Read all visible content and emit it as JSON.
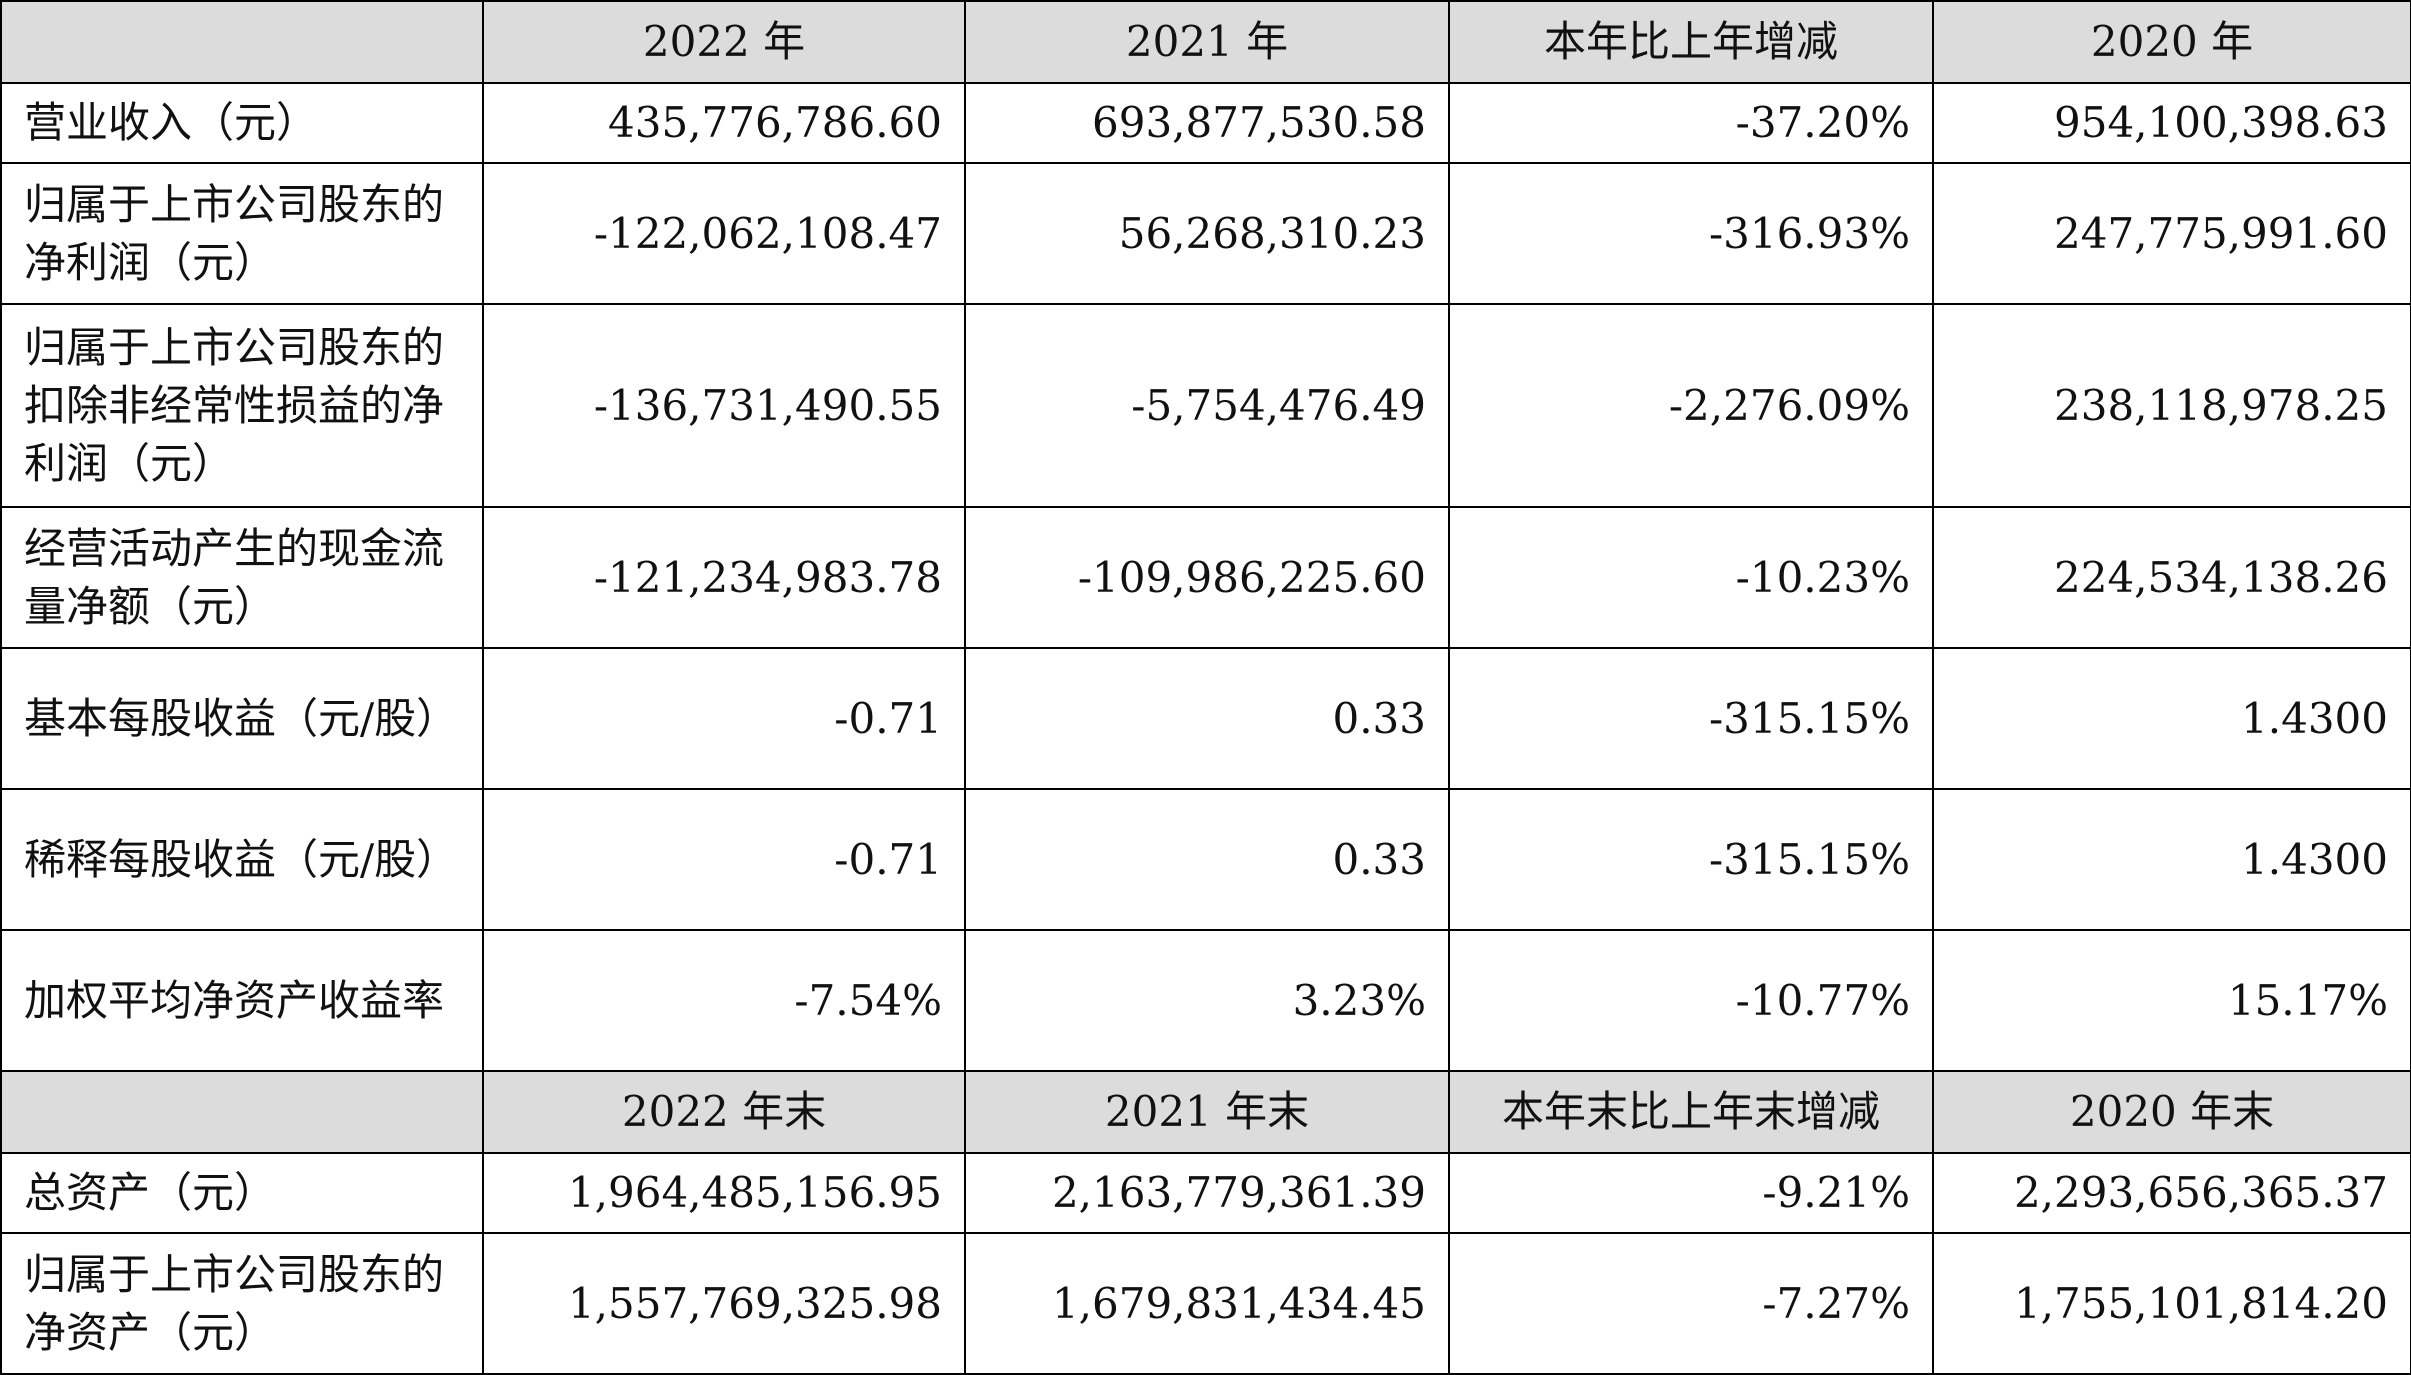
{
  "header1": [
    "",
    "2022 年",
    "2021 年",
    "本年比上年增减",
    "2020 年"
  ],
  "rows1": [
    {
      "label": "营业收入（元）",
      "values": [
        "435,776,786.60",
        "693,877,530.58",
        "-37.20%",
        "954,100,398.63"
      ]
    },
    {
      "label": "归属于上市公司股东的净利润（元）",
      "values": [
        "-122,062,108.47",
        "56,268,310.23",
        "-316.93%",
        "247,775,991.60"
      ]
    },
    {
      "label": "归属于上市公司股东的扣除非经常性损益的净利润（元）",
      "values": [
        "-136,731,490.55",
        "-5,754,476.49",
        "-2,276.09%",
        "238,118,978.25"
      ]
    },
    {
      "label": "经营活动产生的现金流量净额（元）",
      "values": [
        "-121,234,983.78",
        "-109,986,225.60",
        "-10.23%",
        "224,534,138.26"
      ]
    },
    {
      "label": "基本每股收益（元/股）",
      "values": [
        "-0.71",
        "0.33",
        "-315.15%",
        "1.4300"
      ]
    },
    {
      "label": "稀释每股收益（元/股）",
      "values": [
        "-0.71",
        "0.33",
        "-315.15%",
        "1.4300"
      ]
    },
    {
      "label": "加权平均净资产收益率",
      "values": [
        "-7.54%",
        "3.23%",
        "-10.77%",
        "15.17%"
      ]
    }
  ],
  "header2": [
    "",
    "2022 年末",
    "2021 年末",
    "本年末比上年末增减",
    "2020 年末"
  ],
  "rows2": [
    {
      "label": "总资产（元）",
      "values": [
        "1,964,485,156.95",
        "2,163,779,361.39",
        "-9.21%",
        "2,293,656,365.37"
      ]
    },
    {
      "label": "归属于上市公司股东的净资产（元）",
      "values": [
        "1,557,769,325.98",
        "1,679,831,434.45",
        "-7.27%",
        "1,755,101,814.20"
      ]
    }
  ]
}
